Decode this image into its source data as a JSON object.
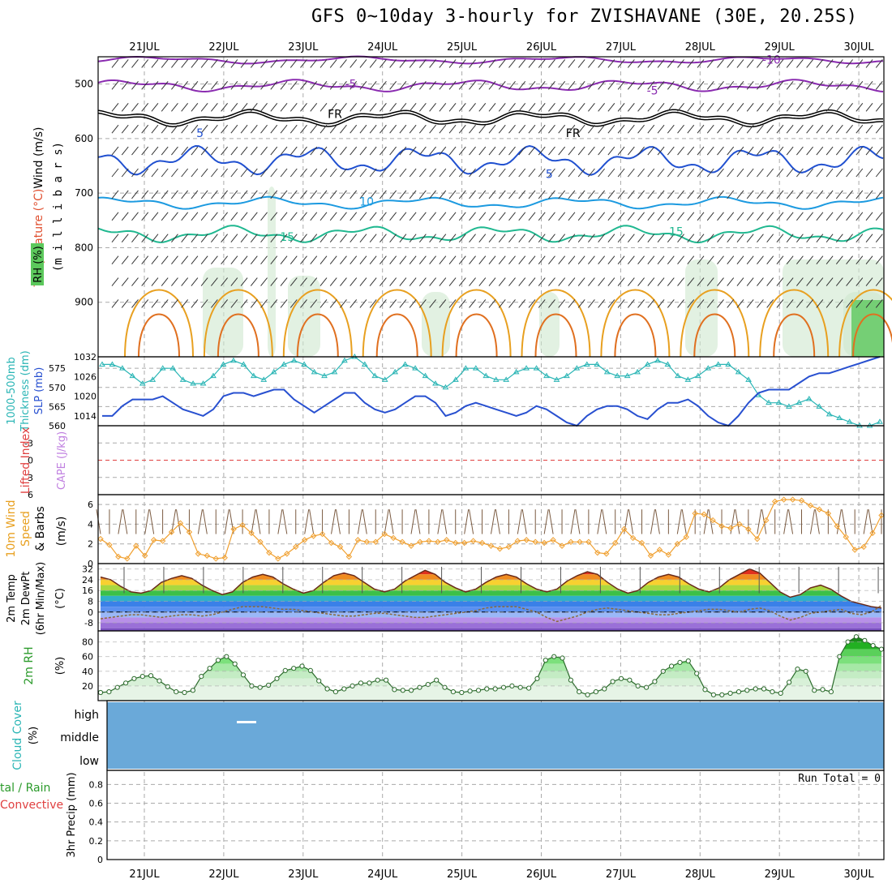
{
  "title": "GFS 0~10day 3-hourly for ZVISHAVANE (30E, 20.25S)",
  "chart_data": [
    {
      "type": "line",
      "name_panel": "upper-air",
      "xlabels": [
        "21JUL",
        "22JUL",
        "23JUL",
        "24JUL",
        "25JUL",
        "26JUL",
        "27JUL",
        "28JUL",
        "29JUL",
        "30JUL"
      ],
      "ylabel_parts": [
        "Wind (m/s)",
        "Temperature (°C)",
        "RH (%)",
        "(m i l l i b a r s)"
      ],
      "yticks": [
        500,
        600,
        700,
        800,
        900
      ],
      "ylim": [
        1000,
        450
      ],
      "contour_labels": [
        {
          "text": "-10",
          "level_mb": 455,
          "day": 7.9
        },
        {
          "text": "-5",
          "level_mb": 500,
          "day": 2.6
        },
        {
          "text": "-5",
          "level_mb": 512,
          "day": 6.4
        },
        {
          "text": "FR",
          "level_mb": 555,
          "day": 2.4
        },
        {
          "text": "FR",
          "level_mb": 590,
          "day": 5.4
        },
        {
          "text": "5",
          "level_mb": 590,
          "day": 0.7
        },
        {
          "text": "5",
          "level_mb": 665,
          "day": 5.1
        },
        {
          "text": "10",
          "level_mb": 715,
          "day": 2.8
        },
        {
          "text": "15",
          "level_mb": 780,
          "day": 1.8
        },
        {
          "text": "15",
          "level_mb": 770,
          "day": 6.7
        }
      ]
    },
    {
      "type": "line",
      "name_panel": "thickness-slp",
      "ylabel_left": "Thickness (dm)",
      "ylabel_left_title": "1000-500mb",
      "ylabel_right": "SLP (mb)",
      "yticks_left": [
        560,
        565,
        570,
        575
      ],
      "yticks_right": [
        1014,
        1020,
        1026,
        1032
      ],
      "series": [
        {
          "name": "Thickness",
          "color": "#2ab5b5",
          "values": [
            576,
            576,
            575,
            573,
            571,
            572,
            575,
            575,
            572,
            571,
            571,
            573,
            576,
            577,
            576,
            573,
            572,
            574,
            576,
            577,
            576,
            574,
            573,
            574,
            577,
            578,
            576,
            573,
            572,
            574,
            576,
            575,
            573,
            571,
            570,
            572,
            575,
            575,
            573,
            572,
            572,
            574,
            575,
            575,
            573,
            572,
            573,
            575,
            576,
            576,
            574,
            573,
            573,
            574,
            576,
            577,
            576,
            573,
            572,
            573,
            575,
            576,
            576,
            574,
            572,
            568,
            566,
            566,
            565,
            566,
            567,
            565,
            563,
            562,
            561,
            560,
            560,
            561
          ]
        },
        {
          "name": "SLP",
          "color": "#2850d0",
          "values": [
            1014,
            1014,
            1017,
            1019,
            1019,
            1019,
            1020,
            1018,
            1016,
            1015,
            1014,
            1016,
            1020,
            1021,
            1021,
            1020,
            1021,
            1022,
            1022,
            1019,
            1017,
            1015,
            1017,
            1019,
            1021,
            1021,
            1018,
            1016,
            1015,
            1016,
            1018,
            1020,
            1020,
            1018,
            1014,
            1015,
            1017,
            1018,
            1017,
            1016,
            1015,
            1014,
            1015,
            1017,
            1016,
            1014,
            1012,
            1011,
            1014,
            1016,
            1017,
            1017,
            1016,
            1014,
            1013,
            1016,
            1018,
            1018,
            1019,
            1017,
            1014,
            1012,
            1011,
            1014,
            1018,
            1021,
            1022,
            1022,
            1022,
            1024,
            1026,
            1027,
            1027,
            1028,
            1029,
            1030,
            1031,
            1032
          ]
        }
      ]
    },
    {
      "type": "line",
      "name_panel": "lifted-index-cape",
      "ylabel_left": "Lifted Index",
      "ylabel_right": "CAPE (J/kg)",
      "yticks": [
        -3,
        0,
        3,
        6
      ],
      "ylim": [
        6,
        -6
      ],
      "series": [
        {
          "name": "Lifted Index",
          "color": "#e04040",
          "values": []
        }
      ]
    },
    {
      "type": "line",
      "name_panel": "wind10m",
      "ylabel_parts": [
        "10m Wind",
        "Speed",
        "& Barbs",
        "(m/s)"
      ],
      "yticks": [
        0,
        2,
        4,
        6
      ],
      "ylim": [
        0,
        7
      ],
      "series": [
        {
          "name": "Wind Speed",
          "color": "#f0a030",
          "values": [
            2.5,
            1.9,
            0.7,
            0.5,
            1.8,
            0.8,
            2.4,
            2.3,
            3.2,
            4.1,
            3.2,
            1.0,
            0.8,
            0.5,
            0.6,
            3.5,
            3.9,
            3.1,
            2.2,
            1.1,
            0.5,
            1.0,
            1.7,
            2.4,
            2.8,
            3.0,
            2.1,
            1.7,
            0.7,
            2.4,
            2.2,
            2.2,
            3.0,
            2.6,
            2.2,
            1.8,
            2.2,
            2.3,
            2.2,
            2.4,
            2.1,
            2.1,
            2.3,
            2.1,
            1.8,
            1.5,
            1.7,
            2.3,
            2.4,
            2.2,
            2.1,
            2.4,
            1.8,
            2.2,
            2.2,
            2.2,
            1.1,
            1.0,
            2.1,
            3.5,
            2.6,
            2.1,
            0.8,
            1.4,
            0.9,
            2.0,
            2.7,
            5.1,
            5.0,
            4.4,
            3.8,
            3.6,
            4.0,
            3.5,
            2.5,
            4.4,
            6.3,
            6.5,
            6.5,
            6.4,
            5.9,
            5.5,
            5.1,
            3.8,
            2.7,
            1.4,
            1.7,
            3.1,
            4.9
          ]
        }
      ]
    },
    {
      "type": "area",
      "name_panel": "temp2m",
      "ylabel_parts": [
        "2m Temp",
        "2m DewPt",
        "(6hr Min/Max)",
        "(°C)"
      ],
      "yticks": [
        -8,
        0,
        8,
        16,
        24,
        32
      ],
      "ylim": [
        -14,
        36
      ],
      "series": [
        {
          "name": "2m Temp",
          "values": [
            26,
            24,
            19,
            15,
            14,
            16,
            22,
            25,
            27,
            25,
            20,
            16,
            13,
            15,
            22,
            26,
            28,
            26,
            21,
            17,
            14,
            16,
            22,
            27,
            29,
            27,
            22,
            17,
            15,
            17,
            23,
            27,
            31,
            28,
            22,
            18,
            15,
            17,
            22,
            26,
            28,
            26,
            21,
            17,
            15,
            17,
            23,
            27,
            30,
            28,
            22,
            17,
            14,
            16,
            22,
            26,
            28,
            26,
            21,
            17,
            15,
            18,
            24,
            28,
            32,
            29,
            22,
            15,
            11,
            13,
            18,
            20,
            17,
            12,
            8,
            6,
            4,
            3
          ]
        },
        {
          "name": "2m DewPt",
          "values": [
            -5,
            -4,
            -3,
            -2,
            -2,
            -3,
            -4,
            -3,
            -2,
            -2,
            -3,
            -2,
            0,
            2,
            4,
            4,
            4,
            3,
            2,
            2,
            1,
            0,
            -1,
            -2,
            -3,
            -3,
            -2,
            -1,
            -1,
            -2,
            -3,
            -4,
            -4,
            -3,
            -2,
            -1,
            0,
            1,
            3,
            4,
            4,
            4,
            2,
            0,
            -4,
            -7,
            -5,
            -3,
            0,
            2,
            3,
            2,
            1,
            0,
            -1,
            -2,
            -2,
            -1,
            0,
            1,
            2,
            2,
            1,
            0,
            2,
            3,
            1,
            -3,
            -6,
            -4,
            -1,
            0,
            1,
            2,
            -1,
            -2,
            0,
            5
          ]
        }
      ]
    },
    {
      "type": "area",
      "name_panel": "rh2m",
      "ylabel_parts": [
        "2m RH",
        "(%)"
      ],
      "yticks": [
        20,
        40,
        60,
        80
      ],
      "ylim": [
        0,
        95
      ],
      "series": [
        {
          "name": "2m RH",
          "color": "#2a8a2a",
          "values": [
            11,
            12,
            18,
            24,
            30,
            33,
            34,
            27,
            19,
            12,
            11,
            14,
            33,
            44,
            55,
            60,
            50,
            35,
            20,
            18,
            21,
            30,
            41,
            44,
            47,
            41,
            27,
            16,
            12,
            16,
            20,
            24,
            24,
            28,
            28,
            15,
            14,
            14,
            18,
            22,
            28,
            18,
            12,
            11,
            13,
            14,
            16,
            16,
            18,
            20,
            18,
            17,
            30,
            55,
            60,
            58,
            28,
            12,
            8,
            12,
            16,
            26,
            30,
            28,
            20,
            18,
            26,
            40,
            47,
            52,
            54,
            37,
            15,
            8,
            8,
            10,
            12,
            14,
            16,
            16,
            12,
            10,
            25,
            43,
            40,
            14,
            15,
            12,
            60,
            80,
            87,
            82,
            75,
            70
          ]
        }
      ]
    },
    {
      "type": "heatmap",
      "name_panel": "cloud-cover",
      "ylabel_parts": [
        "Cloud Cover",
        "(%)"
      ],
      "rows": [
        "high",
        "middle",
        "low"
      ],
      "fill_color": "#6aa9d9"
    },
    {
      "type": "bar",
      "name_panel": "precip",
      "ylabel_parts": [
        "3hr Precip (mm)"
      ],
      "legend_left": [
        "tal / Rain",
        "Convective"
      ],
      "yticks": [
        0,
        0.2,
        0.4,
        0.6,
        0.8
      ],
      "ylim": [
        0,
        0.95
      ],
      "run_total": "Run Total = 0",
      "values": []
    }
  ]
}
